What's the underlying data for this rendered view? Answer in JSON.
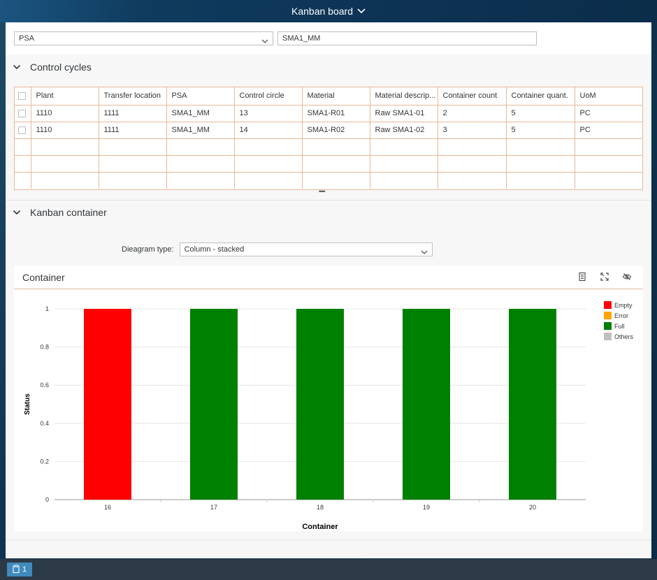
{
  "shell": {
    "title": "Kanban board"
  },
  "filters": {
    "psa_select": "PSA",
    "psa_value": "SMA1_MM"
  },
  "sections": {
    "control_cycles": "Control cycles",
    "kanban_container": "Kanban container"
  },
  "table": {
    "columns": [
      "Plant",
      "Transfer location",
      "PSA",
      "Control circle",
      "Material",
      "Material descrip...",
      "Container count",
      "Container quant.",
      "UoM"
    ],
    "rows": [
      [
        "1110",
        "1111",
        "SMA1_MM",
        "13",
        "SMA1-R01",
        "Raw SMA1-01",
        "2",
        "5",
        "PC"
      ],
      [
        "1110",
        "1111",
        "SMA1_MM",
        "14",
        "SMA1-R02",
        "Raw SMA1-02",
        "3",
        "5",
        "PC"
      ]
    ],
    "empty_rows": 3
  },
  "diagram": {
    "label": "Dieagram type:",
    "value": "Column - stacked"
  },
  "chart": {
    "title": "Container"
  },
  "chart_data": {
    "type": "bar",
    "stacked": true,
    "categories": [
      "16",
      "17",
      "18",
      "19",
      "20"
    ],
    "series": [
      {
        "name": "Empty",
        "color": "#ff0000",
        "values": [
          1,
          0,
          0,
          0,
          0
        ]
      },
      {
        "name": "Error",
        "color": "#ffa500",
        "values": [
          0,
          0,
          0,
          0,
          0
        ]
      },
      {
        "name": "Full",
        "color": "#008000",
        "values": [
          0,
          1,
          1,
          1,
          1
        ]
      },
      {
        "name": "Others",
        "color": "#c0c0c0",
        "values": [
          0,
          0,
          0,
          0,
          0
        ]
      }
    ],
    "xlabel": "Container",
    "ylabel": "Status",
    "ylim": [
      0,
      1
    ],
    "yticks": [
      "0",
      "0.2",
      "0.4",
      "0.6",
      "0.8",
      "1"
    ],
    "legend_position": "right",
    "grid": true
  },
  "footer": {
    "badge": "1"
  }
}
